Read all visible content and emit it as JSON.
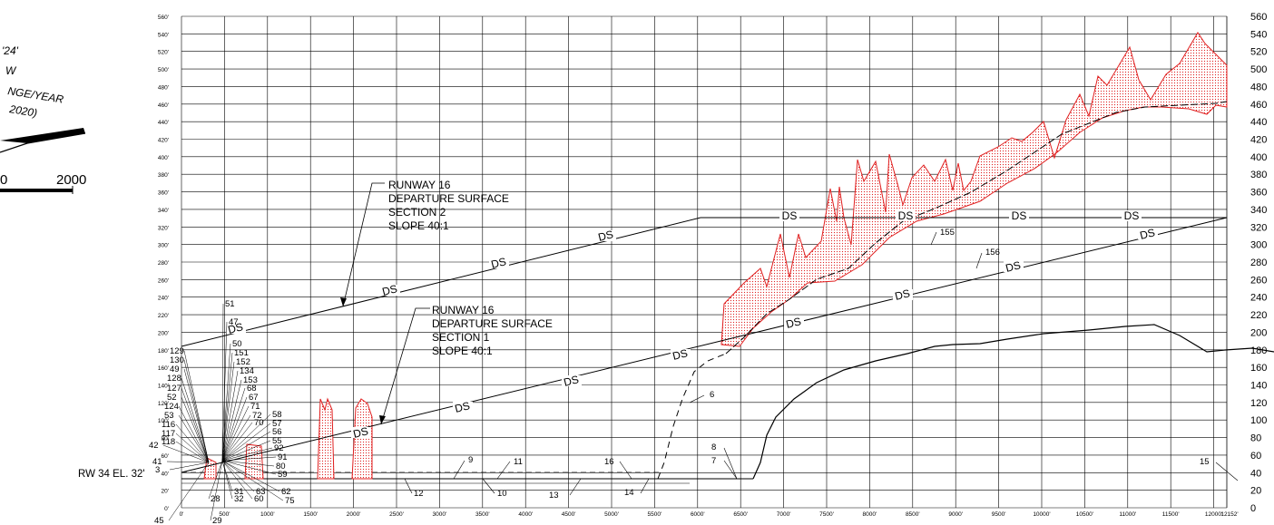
{
  "left_panel": {
    "bearing_fragment": "'24'",
    "direction_fragment": "W",
    "change_fragment": "NGE/YEAR",
    "year_fragment": "2020)",
    "scale_zero": "0",
    "scale_end": "2000"
  },
  "runway_label": "RW 34 EL. 32'",
  "surfaces": {
    "section2_lines": [
      "RUNWAY 16",
      "DEPARTURE SURFACE",
      "SECTION 2",
      "SLOPE 40:1"
    ],
    "section1_lines": [
      "RUNWAY 16",
      "DEPARTURE SURFACE",
      "SECTION 1",
      "SLOPE 40:1"
    ],
    "ds_tag": "DS"
  },
  "axes": {
    "y_ticks_small": [
      "560'",
      "540'",
      "520'",
      "500'",
      "480'",
      "460'",
      "440'",
      "420'",
      "400'",
      "380'",
      "360'",
      "340'",
      "320'",
      "300'",
      "280'",
      "260'",
      "240'",
      "220'",
      "200'",
      "180'",
      "160'",
      "140'",
      "120'",
      "100'",
      "80'",
      "60'",
      "40'",
      "20'",
      "0'"
    ],
    "y_ticks_right": [
      "560",
      "540",
      "520",
      "500",
      "480",
      "460",
      "440",
      "420",
      "400",
      "380",
      "360",
      "340",
      "320",
      "300",
      "280",
      "260",
      "240",
      "220",
      "200",
      "180",
      "160",
      "140",
      "120",
      "100",
      "80",
      "60",
      "40",
      "20",
      "0"
    ],
    "x_ticks": [
      "0'",
      "500'",
      "1000'",
      "1500'",
      "2000'",
      "2500'",
      "3000'",
      "3500'",
      "4000'",
      "4500'",
      "5000'",
      "5500'",
      "6000'",
      "6500'",
      "7000'",
      "7500'",
      "8000'",
      "8500'",
      "9000'",
      "9500'",
      "10000'",
      "10500'",
      "11000'",
      "11500'",
      "12000'",
      "12152'"
    ]
  },
  "obstruction_labels": {
    "left_cluster": [
      "129",
      "130",
      "49",
      "128",
      "127",
      "52",
      "124",
      "53",
      "116",
      "117",
      "118",
      "42",
      "41",
      "3",
      "45"
    ],
    "top_cluster": [
      "51",
      "47",
      "50",
      "151",
      "152",
      "134",
      "153",
      "68",
      "67",
      "71",
      "72",
      "70",
      "58",
      "57",
      "56",
      "55",
      "92",
      "91",
      "80",
      "59",
      "62",
      "75",
      "63",
      "60",
      "31",
      "32",
      "28",
      "29"
    ],
    "numbered": [
      "9",
      "11",
      "12",
      "10",
      "13",
      "16",
      "14",
      "8",
      "7",
      "6",
      "155",
      "156",
      "15"
    ]
  },
  "colors": {
    "obstruction": "#e02020",
    "grid": "#000000"
  }
}
